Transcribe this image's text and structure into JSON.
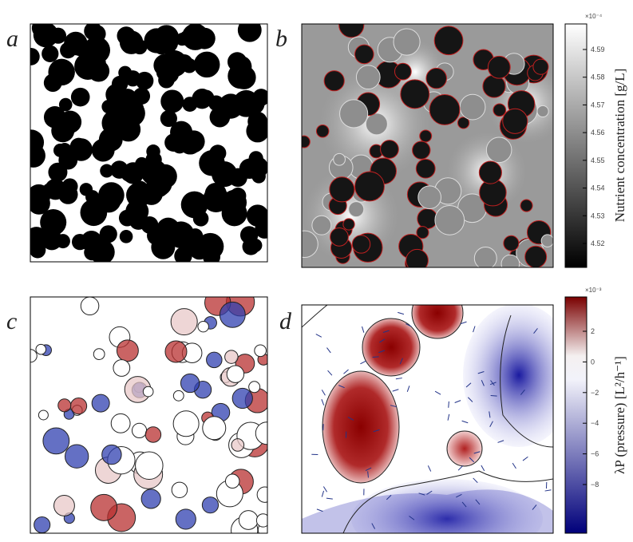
{
  "panels": [
    {
      "label": "a"
    },
    {
      "label": "b"
    },
    {
      "label": "c"
    },
    {
      "label": "d"
    }
  ],
  "colorbars": [
    {
      "label": "Nutrient concentration [g/L]",
      "exponent": "×10⁻⁴",
      "ticks": [
        "4.59",
        "4.58",
        "4.57",
        "4.56",
        "4.55",
        "4.54",
        "4.53",
        "4.52"
      ]
    },
    {
      "label": "λP (pressure) [L²/h⁻¹]",
      "exponent": "×10⁻³",
      "ticks": [
        "2",
        "0",
        "−2",
        "−4",
        "−6",
        "−8"
      ]
    }
  ]
}
